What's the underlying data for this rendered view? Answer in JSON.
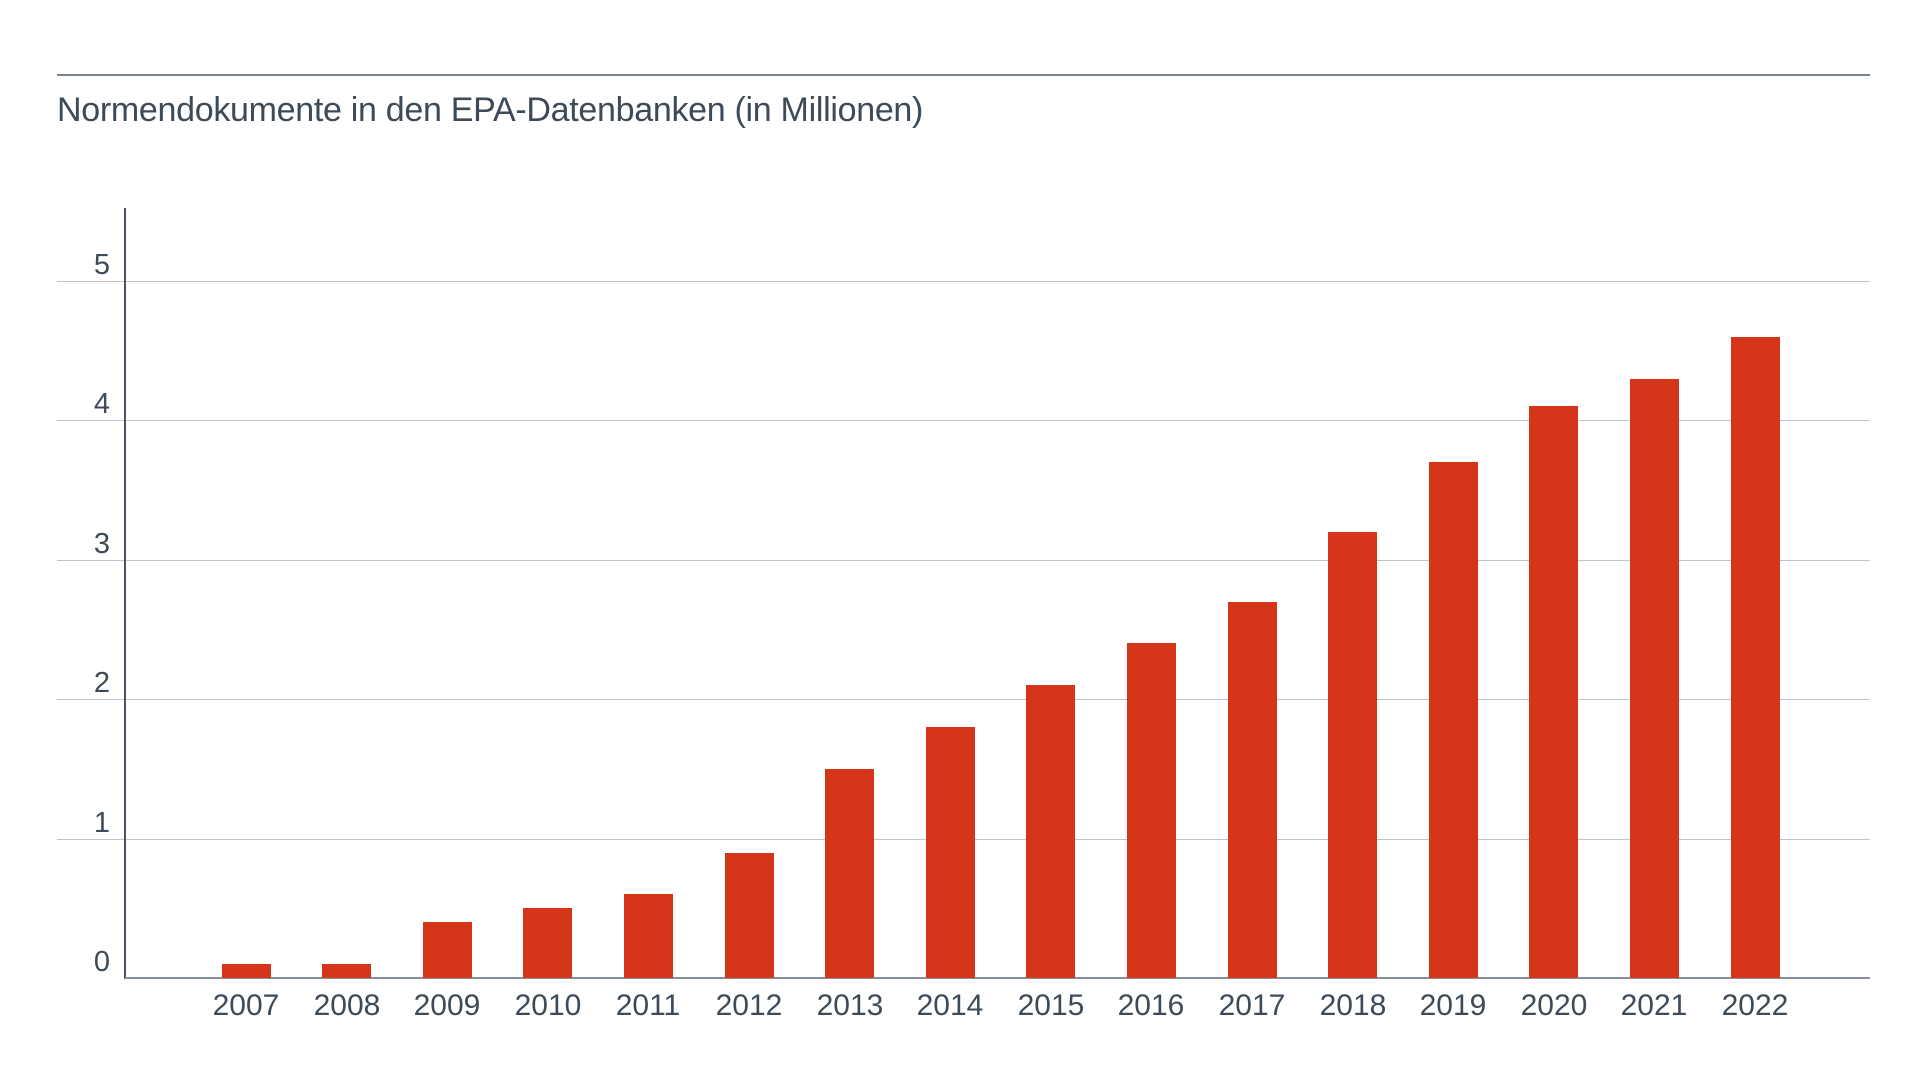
{
  "title": "Normendokumente in den EPA-Datenbanken (in Millionen)",
  "colors": {
    "bar": "#d53619",
    "text": "#3d4a58",
    "gridline": "#bfc3c6",
    "baseline": "#878f98",
    "axis": "#4a5460",
    "top_rule": "#78828c"
  },
  "chart_data": {
    "type": "bar",
    "title": "Normendokumente in den EPA-Datenbanken (in Millionen)",
    "categories": [
      "2007",
      "2008",
      "2009",
      "2010",
      "2011",
      "2012",
      "2013",
      "2014",
      "2015",
      "2016",
      "2017",
      "2018",
      "2019",
      "2020",
      "2021",
      "2022"
    ],
    "values": [
      0.1,
      0.1,
      0.4,
      0.5,
      0.6,
      0.9,
      1.5,
      1.8,
      2.1,
      2.4,
      2.7,
      3.2,
      3.7,
      4.1,
      4.3,
      4.6
    ],
    "xlabel": "",
    "ylabel": "",
    "ylim": [
      0,
      5
    ],
    "yticks": [
      0,
      1,
      2,
      3,
      4,
      5
    ],
    "grid": true,
    "legend": "none",
    "bar_color": "#d53619"
  }
}
